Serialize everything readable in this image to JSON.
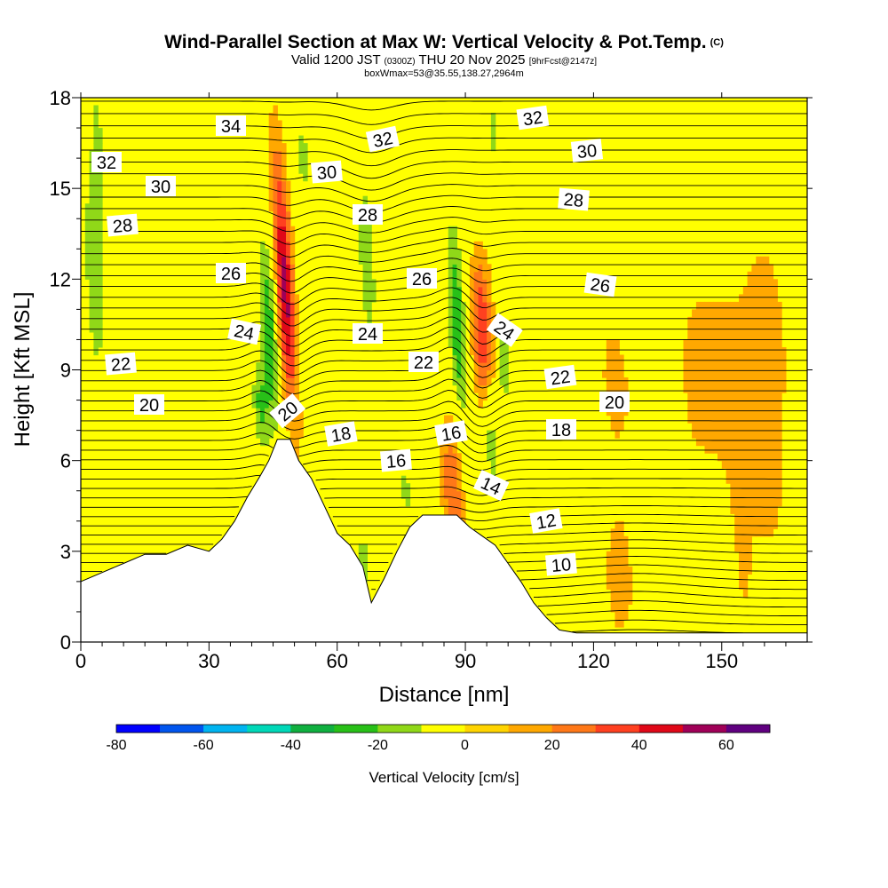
{
  "header": {
    "title": "Wind-Parallel Section at Max W: Vertical Velocity & Pot.Temp.",
    "copyright": "(C)",
    "valid_prefix": "Valid 1200 JST",
    "valid_utc": "(0300Z)",
    "valid_date": "THU 20 Nov 2025",
    "forecast": "[9hrFcst@2147z]",
    "subtitle": "boxWmax=53@35.55,138.27,2964m"
  },
  "chart_data": {
    "type": "contour-section",
    "title": "Wind-Parallel Section at Max W: Vertical Velocity & Pot.Temp.",
    "xlabel": "Distance [nm]",
    "ylabel": "Height [Kft MSL]",
    "xlim": [
      0,
      170
    ],
    "ylim": [
      0,
      18
    ],
    "x_ticks": [
      0,
      30,
      60,
      90,
      120,
      150
    ],
    "y_ticks": [
      0,
      3,
      6,
      9,
      12,
      15,
      18
    ],
    "colorbar": {
      "label": "Vertical Velocity [cm/s]",
      "min": -80,
      "max": 70,
      "step": 10,
      "tick_values": [
        -80,
        -60,
        -40,
        -20,
        0,
        20,
        40,
        60
      ],
      "colors": [
        "#0000ff",
        "#0055ee",
        "#00b4f0",
        "#00d8b8",
        "#10b040",
        "#28c018",
        "#90d818",
        "#ffff00",
        "#ffd400",
        "#ffa800",
        "#ff7818",
        "#ff4020",
        "#e00818",
        "#a00058",
        "#600080"
      ]
    },
    "terrain": [
      [
        0,
        2.0
      ],
      [
        5,
        2.3
      ],
      [
        10,
        2.6
      ],
      [
        15,
        2.9
      ],
      [
        20,
        2.9
      ],
      [
        25,
        3.2
      ],
      [
        30,
        3.0
      ],
      [
        33,
        3.4
      ],
      [
        36,
        4.0
      ],
      [
        39,
        4.8
      ],
      [
        42,
        5.5
      ],
      [
        44,
        6.0
      ],
      [
        46,
        6.7
      ],
      [
        49,
        6.7
      ],
      [
        51,
        6.0
      ],
      [
        54,
        5.4
      ],
      [
        57,
        4.5
      ],
      [
        60,
        3.6
      ],
      [
        63,
        3.2
      ],
      [
        66,
        2.5
      ],
      [
        68,
        1.3
      ],
      [
        71,
        2.1
      ],
      [
        74,
        3.0
      ],
      [
        77,
        3.8
      ],
      [
        80,
        4.2
      ],
      [
        84,
        4.2
      ],
      [
        88,
        4.2
      ],
      [
        91,
        3.8
      ],
      [
        94,
        3.5
      ],
      [
        97,
        3.2
      ],
      [
        100,
        2.6
      ],
      [
        103,
        2.0
      ],
      [
        106,
        1.3
      ],
      [
        109,
        0.8
      ],
      [
        112,
        0.4
      ],
      [
        116,
        0.3
      ],
      [
        170,
        0.3
      ]
    ],
    "potential_temperature_contour_labels": [
      "34",
      "32",
      "30",
      "28",
      "26",
      "24",
      "22",
      "20",
      "18",
      "16",
      "14",
      "12",
      "10"
    ],
    "vertical_velocity_features": [
      {
        "type": "updraft",
        "x": 48,
        "y": 11.3,
        "max": 50
      },
      {
        "type": "downdraft",
        "x": 44,
        "y": 10.2,
        "min": -30
      },
      {
        "type": "updraft",
        "x": 94,
        "y": 10.3,
        "max": 40
      },
      {
        "type": "downdraft",
        "x": 88,
        "y": 10.6,
        "min": -30
      },
      {
        "type": "updraft",
        "x": 87,
        "y": 5.0,
        "max": 30
      },
      {
        "type": "downdraft",
        "x": 67,
        "y": 12.5,
        "min": -20
      },
      {
        "type": "downdraft",
        "x": 3,
        "y": 12.0,
        "min": -20
      }
    ]
  }
}
